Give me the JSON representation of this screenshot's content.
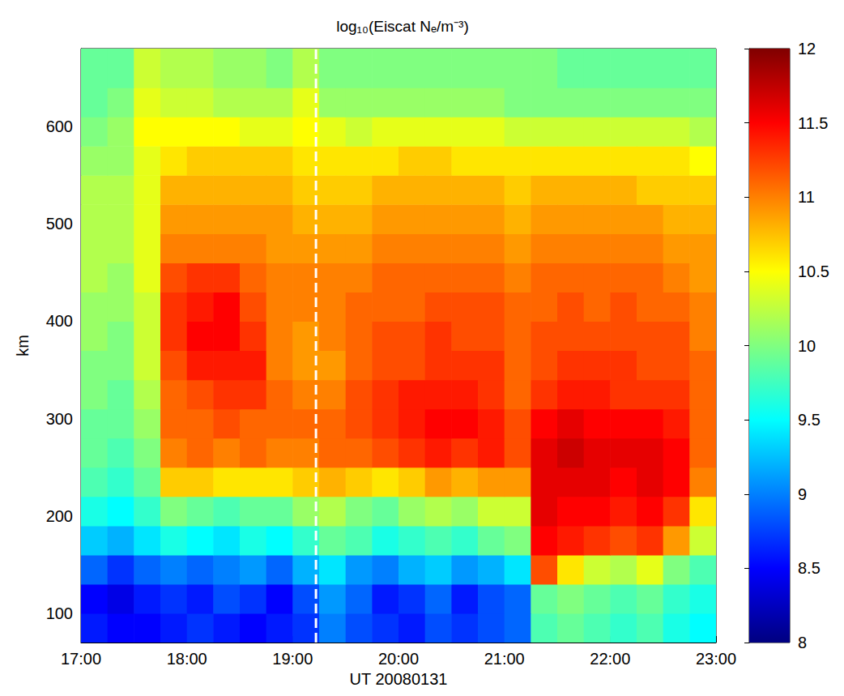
{
  "chart_data": {
    "type": "heatmap",
    "title": "log₁₀(Eiscat Nₑ/m⁻³)",
    "x_label": "UT 20080131",
    "y_label": "km",
    "xlim": [
      17,
      23
    ],
    "xticks": [
      {
        "value": 17,
        "label": "17:00"
      },
      {
        "value": 18,
        "label": "18:00"
      },
      {
        "value": 19,
        "label": "19:00"
      },
      {
        "value": 20,
        "label": "20:00"
      },
      {
        "value": 21,
        "label": "21:00"
      },
      {
        "value": 22,
        "label": "22:00"
      },
      {
        "value": 23,
        "label": "23:00"
      }
    ],
    "ylim": [
      70,
      680
    ],
    "yticks": [
      100,
      200,
      300,
      400,
      500,
      600
    ],
    "x_bins": [
      17,
      17.25,
      17.5,
      17.75,
      18,
      18.25,
      18.5,
      18.75,
      19,
      19.25,
      19.5,
      19.75,
      20,
      20.25,
      20.5,
      20.75,
      21,
      21.25,
      21.5,
      21.75,
      22,
      22.25,
      22.5,
      22.75,
      23
    ],
    "y_bins": [
      70,
      100,
      130,
      160,
      190,
      220,
      250,
      280,
      310,
      340,
      370,
      400,
      430,
      460,
      490,
      520,
      550,
      580,
      610,
      640,
      680
    ],
    "cells": [
      [
        8.6,
        8.5,
        8.5,
        8.6,
        8.7,
        8.6,
        8.5,
        8.6,
        8.7,
        9.0,
        8.8,
        8.7,
        8.6,
        8.8,
        8.7,
        8.8,
        8.9,
        9.8,
        9.9,
        9.8,
        9.7,
        9.8,
        9.6,
        9.5
      ],
      [
        8.5,
        8.4,
        8.6,
        8.7,
        8.6,
        8.8,
        8.7,
        8.5,
        8.8,
        9.1,
        8.9,
        8.6,
        8.7,
        8.9,
        8.6,
        8.8,
        8.9,
        9.9,
        10.0,
        9.9,
        9.8,
        9.9,
        9.7,
        9.6
      ],
      [
        8.9,
        8.7,
        8.9,
        9.0,
        8.9,
        9.0,
        9.1,
        8.9,
        9.2,
        9.4,
        9.1,
        9.0,
        9.2,
        9.3,
        9.1,
        9.2,
        9.4,
        11.2,
        10.6,
        10.3,
        10.2,
        10.4,
        10.0,
        9.8
      ],
      [
        9.3,
        9.2,
        9.4,
        9.6,
        9.5,
        9.4,
        9.6,
        9.5,
        9.7,
        9.9,
        9.8,
        9.6,
        9.7,
        9.8,
        9.7,
        9.9,
        10.0,
        11.5,
        11.4,
        11.3,
        11.2,
        11.3,
        10.9,
        10.3
      ],
      [
        9.6,
        9.5,
        9.7,
        10.0,
        9.9,
        9.8,
        9.9,
        9.9,
        10.1,
        10.2,
        10.0,
        9.9,
        10.1,
        10.2,
        10.1,
        10.3,
        10.3,
        11.6,
        11.5,
        11.5,
        11.4,
        11.5,
        11.3,
        10.6
      ],
      [
        9.8,
        9.7,
        9.9,
        10.7,
        10.7,
        10.6,
        10.6,
        10.6,
        10.7,
        10.8,
        10.7,
        10.6,
        10.7,
        10.9,
        10.8,
        10.9,
        10.9,
        11.6,
        11.6,
        11.6,
        11.5,
        11.6,
        11.5,
        11.0
      ],
      [
        9.9,
        9.8,
        10.0,
        11.0,
        11.1,
        11.0,
        11.1,
        11.0,
        11.0,
        11.1,
        11.1,
        11.2,
        11.3,
        11.4,
        11.3,
        11.4,
        11.2,
        11.6,
        11.7,
        11.6,
        11.6,
        11.6,
        11.5,
        11.1
      ],
      [
        9.9,
        9.9,
        10.1,
        11.1,
        11.1,
        11.2,
        11.1,
        11.1,
        11.1,
        11.1,
        11.2,
        11.3,
        11.4,
        11.5,
        11.5,
        11.4,
        11.2,
        11.5,
        11.6,
        11.5,
        11.5,
        11.5,
        11.4,
        11.1
      ],
      [
        10.0,
        9.9,
        10.2,
        11.1,
        11.2,
        11.3,
        11.3,
        11.1,
        11.0,
        11.0,
        11.2,
        11.3,
        11.4,
        11.4,
        11.4,
        11.3,
        11.1,
        11.3,
        11.4,
        11.4,
        11.3,
        11.3,
        11.3,
        11.1
      ],
      [
        10.0,
        10.0,
        10.3,
        11.2,
        11.4,
        11.4,
        11.4,
        11.0,
        10.9,
        10.9,
        11.1,
        11.2,
        11.2,
        11.3,
        11.3,
        11.3,
        11.1,
        11.2,
        11.3,
        11.3,
        11.3,
        11.2,
        11.2,
        11.1
      ],
      [
        10.1,
        10.0,
        10.3,
        11.3,
        11.5,
        11.5,
        11.3,
        11.0,
        10.9,
        11.0,
        11.1,
        11.2,
        11.2,
        11.3,
        11.2,
        11.2,
        11.1,
        11.2,
        11.2,
        11.2,
        11.2,
        11.2,
        11.2,
        11.0
      ],
      [
        10.1,
        10.1,
        10.3,
        11.3,
        11.4,
        11.5,
        11.2,
        11.0,
        11.0,
        11.0,
        11.1,
        11.1,
        11.1,
        11.2,
        11.2,
        11.2,
        11.1,
        11.1,
        11.2,
        11.1,
        11.2,
        11.1,
        11.1,
        11.0
      ],
      [
        10.2,
        10.1,
        10.4,
        11.2,
        11.3,
        11.3,
        11.1,
        11.0,
        11.0,
        11.0,
        11.0,
        11.1,
        11.1,
        11.1,
        11.1,
        11.1,
        11.0,
        11.1,
        11.1,
        11.1,
        11.1,
        11.1,
        11.0,
        10.9
      ],
      [
        10.2,
        10.2,
        10.4,
        11.0,
        11.0,
        11.0,
        11.0,
        10.9,
        10.9,
        10.9,
        10.9,
        11.0,
        11.0,
        11.0,
        11.0,
        11.0,
        10.9,
        11.0,
        11.0,
        11.0,
        11.0,
        11.0,
        10.9,
        10.9
      ],
      [
        10.2,
        10.2,
        10.4,
        10.9,
        10.9,
        10.9,
        10.9,
        10.9,
        10.8,
        10.8,
        10.8,
        10.9,
        10.9,
        10.9,
        10.9,
        10.9,
        10.8,
        10.9,
        10.9,
        10.9,
        10.9,
        10.9,
        10.8,
        10.8
      ],
      [
        10.2,
        10.2,
        10.4,
        10.8,
        10.8,
        10.8,
        10.8,
        10.8,
        10.7,
        10.7,
        10.7,
        10.8,
        10.8,
        10.8,
        10.8,
        10.8,
        10.7,
        10.8,
        10.8,
        10.8,
        10.8,
        10.7,
        10.7,
        10.7
      ],
      [
        10.1,
        10.1,
        10.4,
        10.6,
        10.7,
        10.7,
        10.7,
        10.7,
        10.6,
        10.6,
        10.6,
        10.6,
        10.7,
        10.7,
        10.6,
        10.6,
        10.6,
        10.6,
        10.6,
        10.6,
        10.6,
        10.6,
        10.6,
        10.5
      ],
      [
        10.0,
        10.1,
        10.5,
        10.5,
        10.5,
        10.5,
        10.4,
        10.4,
        10.5,
        10.4,
        10.3,
        10.4,
        10.4,
        10.4,
        10.4,
        10.4,
        10.3,
        10.3,
        10.3,
        10.3,
        10.3,
        10.3,
        10.3,
        10.2
      ],
      [
        9.9,
        10.0,
        10.4,
        10.3,
        10.3,
        10.2,
        10.2,
        10.2,
        10.4,
        10.1,
        10.1,
        10.1,
        10.1,
        10.1,
        10.1,
        10.1,
        10.0,
        10.0,
        10.0,
        10.0,
        10.0,
        10.0,
        10.0,
        10.0
      ],
      [
        9.9,
        9.9,
        10.3,
        10.2,
        10.2,
        10.1,
        10.1,
        10.0,
        10.2,
        10.0,
        10.0,
        10.0,
        10.0,
        10.0,
        10.0,
        10.0,
        10.0,
        10.0,
        9.9,
        9.9,
        9.9,
        9.9,
        9.9,
        9.9
      ]
    ],
    "colorbar": {
      "range": [
        8,
        12
      ],
      "ticks": [
        8,
        8.5,
        9,
        9.5,
        10,
        10.5,
        11,
        11.5,
        12
      ]
    },
    "vline": {
      "x": 19.22,
      "color": "#ffffff",
      "line_style": "dashed"
    }
  }
}
